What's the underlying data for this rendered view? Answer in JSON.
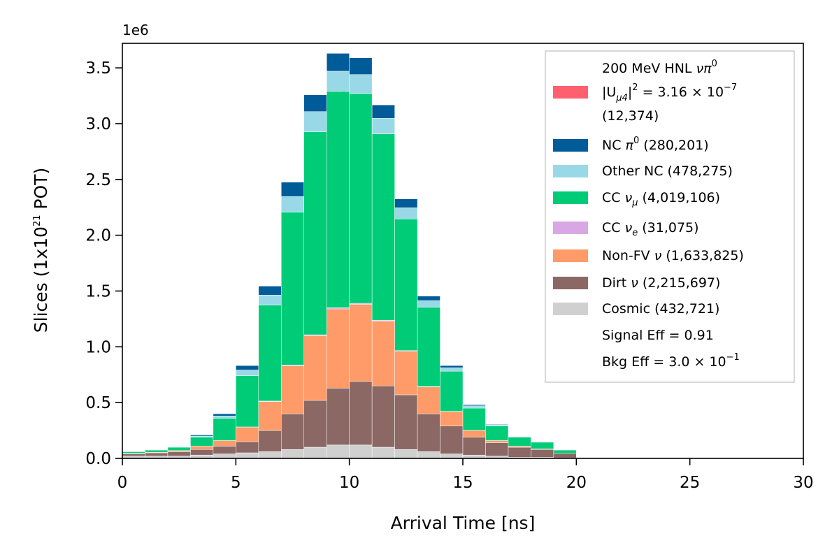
{
  "chart_data": {
    "type": "bar",
    "stacked": true,
    "xlabel": "Arrival Time [ns]",
    "ylabel_parts": {
      "pre": "Slices (1x10",
      "sup": "21",
      "post": " POT)"
    },
    "offset_text": "1e6",
    "xlim": [
      0,
      30
    ],
    "ylim": [
      0,
      3.72
    ],
    "y_scale": 1000000,
    "xticks": [
      "0",
      "5",
      "10",
      "15",
      "20",
      "25",
      "30"
    ],
    "yticks": [
      "0.0",
      "0.5",
      "1.0",
      "1.5",
      "2.0",
      "2.5",
      "3.0",
      "3.5"
    ],
    "bin_edges": [
      0,
      1,
      2,
      3,
      4,
      5,
      6,
      7,
      8,
      9,
      10,
      11,
      12,
      13,
      14,
      15,
      16,
      17,
      18,
      19,
      20,
      21,
      22,
      23,
      24,
      25,
      26,
      27,
      28,
      29,
      30
    ],
    "series": [
      {
        "key": "cosmic",
        "color": "#d0d0d0",
        "values": [
          0.02,
          0.02,
          0.02,
          0.03,
          0.04,
          0.05,
          0.06,
          0.08,
          0.1,
          0.12,
          0.12,
          0.1,
          0.08,
          0.06,
          0.04,
          0.03,
          0.02,
          0.01,
          0.01,
          0.005,
          0,
          0,
          0,
          0,
          0,
          0,
          0,
          0,
          0,
          0
        ]
      },
      {
        "key": "dirt",
        "color": "#8c6864",
        "values": [
          0.02,
          0.03,
          0.04,
          0.05,
          0.07,
          0.1,
          0.19,
          0.32,
          0.42,
          0.51,
          0.57,
          0.55,
          0.49,
          0.34,
          0.25,
          0.16,
          0.12,
          0.09,
          0.07,
          0.04,
          0,
          0,
          0,
          0,
          0,
          0,
          0,
          0,
          0,
          0
        ]
      },
      {
        "key": "nonfv",
        "color": "#ff9b68",
        "values": [
          0.005,
          0.005,
          0.01,
          0.03,
          0.05,
          0.13,
          0.26,
          0.43,
          0.58,
          0.71,
          0.69,
          0.58,
          0.39,
          0.24,
          0.13,
          0.06,
          0.02,
          0.01,
          0.005,
          0,
          0,
          0,
          0,
          0,
          0,
          0,
          0,
          0,
          0,
          0
        ]
      },
      {
        "key": "cce",
        "color": "#d8a8e4",
        "values": [
          0,
          0,
          0,
          0,
          0,
          0.002,
          0.004,
          0.006,
          0.008,
          0.01,
          0.01,
          0.008,
          0.006,
          0.004,
          0.002,
          0.001,
          0,
          0,
          0,
          0,
          0,
          0,
          0,
          0,
          0,
          0,
          0,
          0,
          0,
          0
        ]
      },
      {
        "key": "ccmu",
        "color": "#00cc78",
        "values": [
          0.015,
          0.02,
          0.03,
          0.08,
          0.2,
          0.46,
          0.86,
          1.37,
          1.82,
          1.94,
          1.88,
          1.67,
          1.18,
          0.71,
          0.36,
          0.2,
          0.13,
          0.08,
          0.06,
          0.03,
          0,
          0,
          0,
          0,
          0,
          0,
          0,
          0,
          0,
          0
        ]
      },
      {
        "key": "othernc",
        "color": "#99d8e6",
        "values": [
          0.002,
          0.004,
          0.006,
          0.01,
          0.02,
          0.05,
          0.09,
          0.14,
          0.18,
          0.18,
          0.17,
          0.14,
          0.1,
          0.06,
          0.03,
          0.02,
          0.01,
          0.005,
          0.005,
          0.002,
          0,
          0,
          0,
          0,
          0,
          0,
          0,
          0,
          0,
          0
        ]
      },
      {
        "key": "ncpi0",
        "color": "#005c99",
        "values": [
          0.001,
          0.002,
          0.003,
          0.01,
          0.02,
          0.04,
          0.08,
          0.13,
          0.15,
          0.16,
          0.15,
          0.12,
          0.08,
          0.04,
          0.02,
          0.01,
          0.005,
          0.003,
          0.002,
          0.001,
          0,
          0,
          0,
          0,
          0,
          0,
          0,
          0,
          0,
          0
        ]
      },
      {
        "key": "hnl",
        "color": "#ff6070",
        "values": [
          0,
          0,
          0,
          0,
          0,
          0,
          0,
          0,
          0,
          0,
          0,
          0,
          0,
          0,
          0,
          0,
          0,
          0,
          0,
          0,
          0,
          0,
          0,
          0,
          0,
          0,
          0,
          0,
          0,
          0
        ]
      }
    ],
    "legend_position": "upper right",
    "legend": {
      "hnl": {
        "color": "#ff6070",
        "line1_pre": "200 MeV HNL ",
        "line1_sym": "νπ",
        "line1_sup": "0",
        "line2_pre": "|U",
        "line2_sub": "μ4",
        "line2_mid": "|",
        "line2_sup": "2",
        "line2_post": " = 3.16 × 10",
        "line2_sup2": "−7",
        "line3": " (12,374)"
      },
      "ncpi0": {
        "color": "#005c99",
        "pre": "NC ",
        "sym": "π",
        "sup": "0",
        "post": " (280,201)"
      },
      "othernc": {
        "color": "#99d8e6",
        "text": "Other NC (478,275)"
      },
      "ccmu": {
        "color": "#00cc78",
        "pre": "CC ",
        "sym": "ν",
        "sub": "μ",
        "post": " (4,019,106)"
      },
      "cce": {
        "color": "#d8a8e4",
        "pre": "CC ",
        "sym": "ν",
        "sub": "e",
        "post": " (31,075)"
      },
      "nonfv": {
        "color": "#ff9b68",
        "pre": "Non-FV ",
        "sym": "ν",
        "post": " (1,633,825)"
      },
      "dirt": {
        "color": "#8c6864",
        "pre": "Dirt ",
        "sym": "ν",
        "post": " (2,215,697)"
      },
      "cosmic": {
        "color": "#d0d0d0",
        "text": "Cosmic (432,721)"
      },
      "signal_eff": "Signal Eff = 0.91",
      "bkg_eff": {
        "pre": "Bkg Eff = 3.0 × 10",
        "sup": "−1"
      }
    }
  }
}
